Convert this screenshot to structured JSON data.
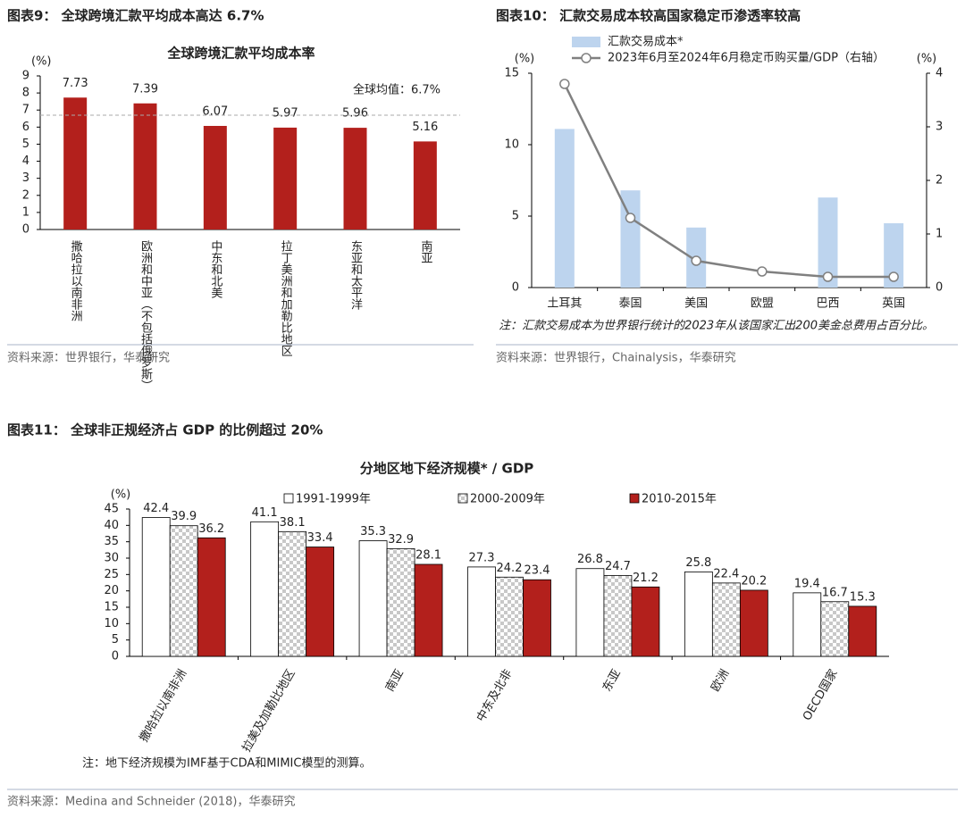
{
  "chart_data": [
    {
      "type": "bar",
      "figure_title": "图表9：  全球跨境汇款平均成本高达 6.7%",
      "title": "全球跨境汇款平均成本率",
      "y_unit": "(%)",
      "categories": [
        "撒哈拉以南非洲",
        "欧洲和中亚（不包括俄罗斯）",
        "中东和北美",
        "拉丁美洲和加勒比地区",
        "东亚和太平洋",
        "南亚"
      ],
      "values": [
        7.73,
        7.39,
        6.07,
        5.97,
        5.96,
        5.16
      ],
      "color": "#b3201c",
      "ylim": [
        0,
        9
      ],
      "yticks": [
        0,
        1,
        2,
        3,
        4,
        5,
        6,
        7,
        8,
        9
      ],
      "reference_line": {
        "value": 6.7,
        "label": "全球均值：6.7%",
        "color": "#c0504d"
      },
      "source": "资料来源：世界银行，华泰研究"
    },
    {
      "type": "bar_line",
      "figure_title": "图表10：  汇款交易成本较高国家稳定币渗透率较高",
      "y_unit": "(%)",
      "y2_unit": "(%)",
      "categories": [
        "土耳其",
        "泰国",
        "美国",
        "欧盟",
        "巴西",
        "英国"
      ],
      "series": [
        {
          "name": "汇款交易成本*",
          "color": "#bdd4ee",
          "values": [
            11.1,
            6.8,
            4.2,
            null,
            6.3,
            4.5
          ]
        },
        {
          "name": "2023年6月至2024年6月稳定币购买量/GDP（右轴）",
          "color": "#808080",
          "axis": "y2",
          "values": [
            3.8,
            1.3,
            0.5,
            0.3,
            0.2,
            0.2
          ]
        }
      ],
      "ylim": [
        0,
        15
      ],
      "yticks": [
        0,
        5,
        10,
        15
      ],
      "y2lim": [
        0,
        4
      ],
      "y2ticks": [
        0,
        1,
        2,
        3,
        4
      ],
      "note": "注：汇款交易成本为世界银行统计的2023年从该国家汇出200美金总费用占百分比。",
      "source": "资料来源：世界银行，Chainalysis，华泰研究"
    },
    {
      "type": "grouped_bar",
      "figure_title": "图表11：  全球非正规经济占 GDP 的比例超过 20%",
      "title": "分地区地下经济规模* / GDP",
      "y_unit": "(%)",
      "categories": [
        "撒哈拉以南非洲",
        "拉美及加勒比地区",
        "南亚",
        "中东及北非",
        "东亚",
        "欧洲",
        "OECD国家"
      ],
      "series": [
        {
          "name": "1991-1999年",
          "color": "#ffffff",
          "label_color": "#9cc3e6",
          "values": [
            42.4,
            41.1,
            35.3,
            27.3,
            26.8,
            25.8,
            19.4
          ]
        },
        {
          "name": "2000-2009年",
          "color": "#c8c8c8",
          "pattern": "checkered",
          "label_color": "#d6c9a8",
          "values": [
            39.9,
            38.1,
            32.9,
            24.2,
            24.7,
            22.4,
            16.7
          ]
        },
        {
          "name": "2010-2015年",
          "color": "#b3201c",
          "label_color": "#c0282a",
          "values": [
            36.2,
            33.4,
            28.1,
            23.4,
            21.2,
            20.2,
            15.3
          ]
        }
      ],
      "ylim": [
        0,
        45
      ],
      "yticks": [
        0,
        5,
        10,
        15,
        20,
        25,
        30,
        35,
        40,
        45
      ],
      "note": "注：地下经济规模为IMF基于CDA和MIMIC模型的测算。",
      "source": "资料来源：Medina and Schneider (2018)，华泰研究"
    }
  ]
}
